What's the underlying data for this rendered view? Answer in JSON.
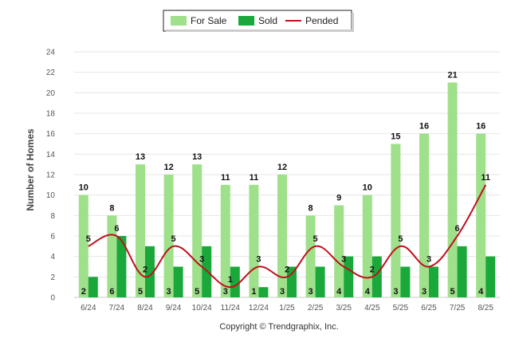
{
  "chart_data": {
    "type": "bar",
    "categories": [
      "6/24",
      "7/24",
      "8/24",
      "9/24",
      "10/24",
      "11/24",
      "12/24",
      "1/25",
      "2/25",
      "3/25",
      "4/25",
      "5/25",
      "6/25",
      "7/25",
      "8/25"
    ],
    "series": [
      {
        "name": "For Sale",
        "kind": "bar",
        "color": "#9fe08a",
        "values": [
          10,
          8,
          13,
          12,
          13,
          11,
          11,
          12,
          8,
          9,
          10,
          15,
          16,
          21,
          16
        ]
      },
      {
        "name": "Sold",
        "kind": "bar",
        "color": "#1aa83a",
        "values": [
          2,
          6,
          5,
          3,
          5,
          3,
          1,
          3,
          3,
          4,
          4,
          3,
          3,
          5,
          4
        ]
      },
      {
        "name": "Pended",
        "kind": "line",
        "color": "#c0101e",
        "values": [
          5,
          6,
          2,
          5,
          3,
          1,
          3,
          2,
          5,
          3,
          2,
          5,
          3,
          6,
          11
        ]
      }
    ],
    "xlabel": "",
    "ylabel": "Number of Homes",
    "ylim": [
      0,
      24
    ],
    "yticks": [
      0,
      2,
      4,
      6,
      8,
      10,
      12,
      14,
      16,
      18,
      20,
      22,
      24
    ],
    "grid": true,
    "legend_position": "top-center",
    "footer": "Copyright © Trendgraphix, Inc."
  }
}
